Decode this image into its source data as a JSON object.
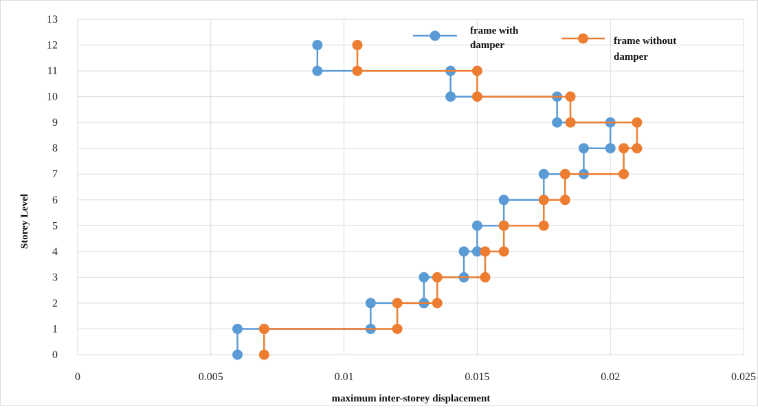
{
  "chart_data": {
    "type": "line",
    "title": "",
    "xlabel": "maximum inter-storey displacement",
    "ylabel": "Storey Level",
    "xlim": [
      0,
      0.025
    ],
    "ylim": [
      0,
      13
    ],
    "x_ticks": [
      "0",
      "0.005",
      "0.01",
      "0.015",
      "0.02",
      "0.025"
    ],
    "y_ticks": [
      "0",
      "1",
      "2",
      "3",
      "4",
      "5",
      "6",
      "7",
      "8",
      "9",
      "10",
      "11",
      "12",
      "13"
    ],
    "grid": true,
    "legend_position": "top-right",
    "series": [
      {
        "name": "frame with damper",
        "legend_lines": [
          "frame with",
          "damper"
        ],
        "color": "#5b9bd5",
        "points": [
          {
            "x": 0.006,
            "y": 0
          },
          {
            "x": 0.006,
            "y": 1
          },
          {
            "x": 0.011,
            "y": 1
          },
          {
            "x": 0.011,
            "y": 2
          },
          {
            "x": 0.013,
            "y": 2
          },
          {
            "x": 0.013,
            "y": 3
          },
          {
            "x": 0.0145,
            "y": 3
          },
          {
            "x": 0.0145,
            "y": 4
          },
          {
            "x": 0.015,
            "y": 4
          },
          {
            "x": 0.015,
            "y": 5
          },
          {
            "x": 0.016,
            "y": 5
          },
          {
            "x": 0.016,
            "y": 6
          },
          {
            "x": 0.0175,
            "y": 6
          },
          {
            "x": 0.0175,
            "y": 7
          },
          {
            "x": 0.019,
            "y": 7
          },
          {
            "x": 0.019,
            "y": 8
          },
          {
            "x": 0.02,
            "y": 8
          },
          {
            "x": 0.02,
            "y": 9
          },
          {
            "x": 0.018,
            "y": 9
          },
          {
            "x": 0.018,
            "y": 10
          },
          {
            "x": 0.014,
            "y": 10
          },
          {
            "x": 0.014,
            "y": 11
          },
          {
            "x": 0.009,
            "y": 11
          },
          {
            "x": 0.009,
            "y": 12
          }
        ]
      },
      {
        "name": "frame without damper",
        "legend_lines": [
          "frame without",
          "damper"
        ],
        "color": "#ed7d31",
        "points": [
          {
            "x": 0.007,
            "y": 0
          },
          {
            "x": 0.007,
            "y": 1
          },
          {
            "x": 0.012,
            "y": 1
          },
          {
            "x": 0.012,
            "y": 2
          },
          {
            "x": 0.0135,
            "y": 2
          },
          {
            "x": 0.0135,
            "y": 3
          },
          {
            "x": 0.0153,
            "y": 3
          },
          {
            "x": 0.0153,
            "y": 4
          },
          {
            "x": 0.016,
            "y": 4
          },
          {
            "x": 0.016,
            "y": 5
          },
          {
            "x": 0.0175,
            "y": 5
          },
          {
            "x": 0.0175,
            "y": 6
          },
          {
            "x": 0.0183,
            "y": 6
          },
          {
            "x": 0.0183,
            "y": 7
          },
          {
            "x": 0.0205,
            "y": 7
          },
          {
            "x": 0.0205,
            "y": 8
          },
          {
            "x": 0.021,
            "y": 8
          },
          {
            "x": 0.021,
            "y": 9
          },
          {
            "x": 0.0185,
            "y": 9
          },
          {
            "x": 0.0185,
            "y": 10
          },
          {
            "x": 0.015,
            "y": 10
          },
          {
            "x": 0.015,
            "y": 11
          },
          {
            "x": 0.0105,
            "y": 11
          },
          {
            "x": 0.0105,
            "y": 12
          }
        ]
      }
    ]
  }
}
